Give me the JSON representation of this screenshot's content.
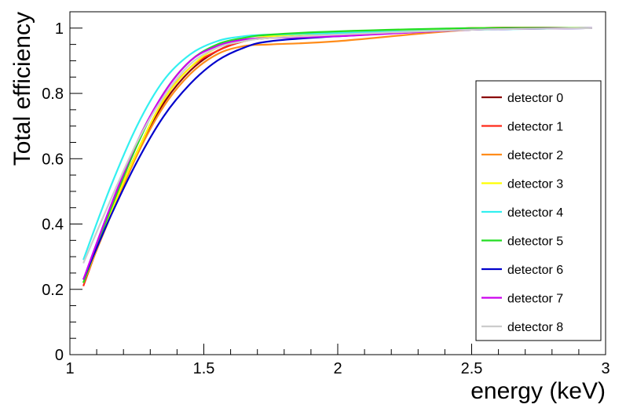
{
  "chart_data": {
    "type": "line",
    "title": "",
    "xlabel": "energy (keV)",
    "ylabel": "Total efficiency",
    "xlim": [
      1,
      3
    ],
    "ylim": [
      0,
      1.05
    ],
    "x_ticks": [
      1,
      1.5,
      2,
      2.5,
      3
    ],
    "x_tick_labels": [
      "1",
      "1.5",
      "2",
      "2.5",
      "3"
    ],
    "y_ticks": [
      0,
      0.2,
      0.4,
      0.6,
      0.8,
      1
    ],
    "y_tick_labels": [
      "0",
      "0.2",
      "0.4",
      "0.6",
      "0.8",
      "1"
    ],
    "grid": false,
    "legend_position": "right",
    "series": [
      {
        "name": "detector 0",
        "color": "#8b0000",
        "x": [
          1.05,
          1.15,
          1.25,
          1.35,
          1.45,
          1.55,
          1.65,
          1.75,
          2.0,
          2.5,
          2.95
        ],
        "y": [
          0.22,
          0.43,
          0.62,
          0.77,
          0.87,
          0.93,
          0.96,
          0.97,
          0.98,
          1.0,
          1.0
        ]
      },
      {
        "name": "detector 1",
        "color": "#ff2a1a",
        "x": [
          1.05,
          1.15,
          1.25,
          1.35,
          1.45,
          1.55,
          1.65,
          1.75,
          2.0,
          2.5,
          2.95
        ],
        "y": [
          0.21,
          0.43,
          0.62,
          0.78,
          0.88,
          0.93,
          0.96,
          0.97,
          0.98,
          1.0,
          1.0
        ]
      },
      {
        "name": "detector 2",
        "color": "#ff8c1a",
        "x": [
          1.05,
          1.15,
          1.25,
          1.35,
          1.45,
          1.55,
          1.65,
          1.75,
          2.0,
          2.5,
          2.95
        ],
        "y": [
          0.22,
          0.42,
          0.61,
          0.76,
          0.86,
          0.92,
          0.945,
          0.95,
          0.96,
          0.995,
          1.0
        ]
      },
      {
        "name": "detector 3",
        "color": "#ffff00",
        "x": [
          1.05,
          1.15,
          1.25,
          1.35,
          1.45,
          1.55,
          1.65,
          1.75,
          2.0,
          2.5,
          2.95
        ],
        "y": [
          0.22,
          0.43,
          0.62,
          0.78,
          0.88,
          0.94,
          0.96,
          0.975,
          0.985,
          1.0,
          1.0
        ]
      },
      {
        "name": "detector 4",
        "color": "#33f0f0",
        "x": [
          1.05,
          1.15,
          1.25,
          1.35,
          1.45,
          1.55,
          1.65,
          1.75,
          2.0,
          2.5,
          2.95
        ],
        "y": [
          0.29,
          0.51,
          0.7,
          0.84,
          0.92,
          0.96,
          0.975,
          0.98,
          0.985,
          0.995,
          1.0
        ]
      },
      {
        "name": "detector 5",
        "color": "#22dd22",
        "x": [
          1.05,
          1.15,
          1.25,
          1.35,
          1.45,
          1.55,
          1.65,
          1.75,
          2.0,
          2.5,
          2.95
        ],
        "y": [
          0.22,
          0.44,
          0.64,
          0.8,
          0.9,
          0.95,
          0.97,
          0.98,
          0.99,
          1.0,
          1.0
        ]
      },
      {
        "name": "detector 6",
        "color": "#0000cc",
        "x": [
          1.05,
          1.15,
          1.25,
          1.35,
          1.45,
          1.55,
          1.65,
          1.75,
          2.0,
          2.5,
          2.95
        ],
        "y": [
          0.23,
          0.42,
          0.59,
          0.73,
          0.83,
          0.9,
          0.94,
          0.96,
          0.975,
          0.995,
          1.0
        ]
      },
      {
        "name": "detector 7",
        "color": "#cc00ee",
        "x": [
          1.05,
          1.15,
          1.25,
          1.35,
          1.45,
          1.55,
          1.65,
          1.75,
          2.0,
          2.5,
          2.95
        ],
        "y": [
          0.23,
          0.45,
          0.65,
          0.8,
          0.9,
          0.945,
          0.965,
          0.97,
          0.975,
          0.995,
          1.0
        ]
      },
      {
        "name": "detector 8",
        "color": "#cccccc",
        "x": [
          1.05,
          1.15,
          1.25,
          1.35,
          1.45,
          1.55,
          1.65,
          1.75,
          2.0,
          2.5,
          2.95
        ],
        "y": [
          0.28,
          0.47,
          0.65,
          0.79,
          0.89,
          0.94,
          0.96,
          0.97,
          0.98,
          0.995,
          1.0
        ]
      }
    ]
  }
}
